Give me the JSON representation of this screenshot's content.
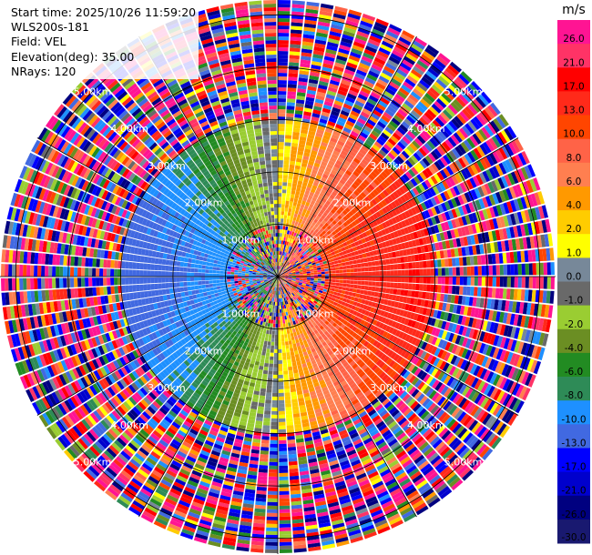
{
  "info": {
    "start_time": "Start time: 2025/10/26 11:59:20",
    "station": "WLS200s-181",
    "field": "Field: VEL",
    "elevation": "Elevation(deg): 35.00",
    "nrays": "NRays: 120"
  },
  "chart_data": {
    "type": "heatmap",
    "projection": "polar-ppi",
    "n_rays": 120,
    "max_range_km": 5.3,
    "range_rings_km": [
      1,
      2,
      3,
      4,
      5
    ],
    "ring_labels": [
      "1.00km",
      "2.00km",
      "3.00km",
      "4.00km",
      "5.00km"
    ],
    "spoke_angles_deg": [
      0,
      30,
      60,
      90,
      120,
      150
    ],
    "data_coverage_km": 3.0,
    "velocity_pattern": {
      "description": "Radial velocity shown as colored beams; positive (warm) on east side, negative (cool) on west side",
      "east_peak_ms": 12,
      "west_peak_ms": -14,
      "near_range_noise_km": 1.0,
      "noise_beyond_km": 3.0
    },
    "colorbar": {
      "unit": "m/s",
      "ticks": [
        "26.0",
        "21.0",
        "17.0",
        "13.0",
        "10.0",
        "8.0",
        "6.0",
        "4.0",
        "2.0",
        "1.0",
        "0.0",
        "-1.0",
        "-2.0",
        "-4.0",
        "-6.0",
        "-8.0",
        "-10.0",
        "-13.0",
        "-17.0",
        "-21.0",
        "-26.0",
        "-30.0"
      ],
      "colors": [
        "#ff1493",
        "#ff3366",
        "#ff0000",
        "#ff2a1a",
        "#ff4500",
        "#ff6347",
        "#ff7f50",
        "#ff9900",
        "#ffcc00",
        "#ffff00",
        "#778899",
        "#696969",
        "#9acd32",
        "#6b8e23",
        "#228b22",
        "#2e8b57",
        "#1e90ff",
        "#4169e1",
        "#0000ff",
        "#0000cd",
        "#000080",
        "#191970"
      ]
    }
  }
}
